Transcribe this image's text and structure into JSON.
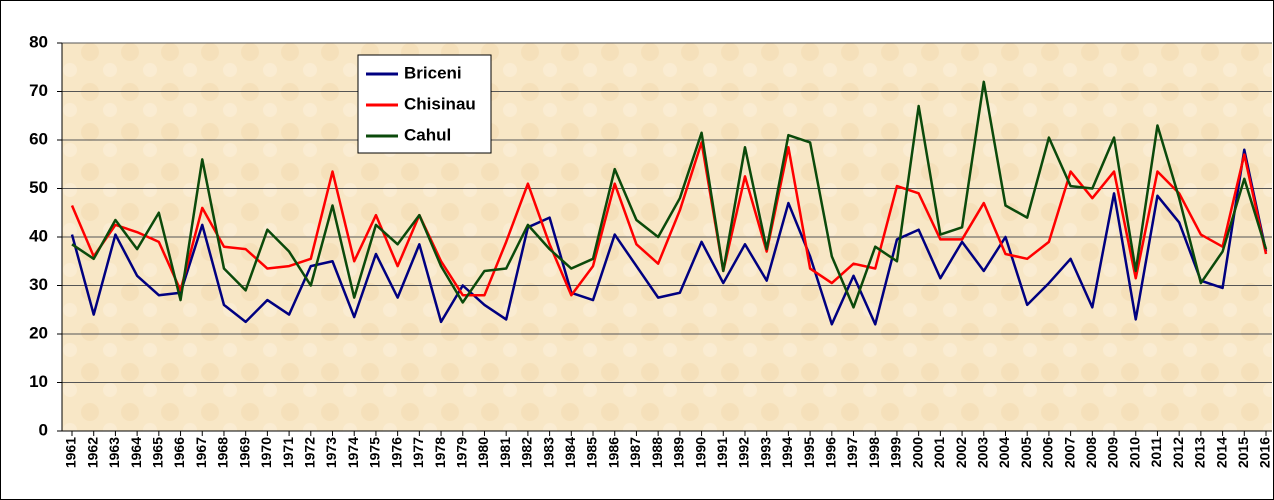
{
  "chart_data": {
    "type": "line",
    "categories": [
      "1961",
      "1962",
      "1963",
      "1964",
      "1965",
      "1966",
      "1967",
      "1968",
      "1969",
      "1970",
      "1971",
      "1972",
      "1973",
      "1974",
      "1975",
      "1976",
      "1977",
      "1978",
      "1979",
      "1980",
      "1981",
      "1982",
      "1983",
      "1984",
      "1985",
      "1986",
      "1987",
      "1988",
      "1989",
      "1990",
      "1991",
      "1992",
      "1993",
      "1994",
      "1995",
      "1996",
      "1997",
      "1998",
      "1999",
      "2000",
      "2001",
      "2002",
      "2003",
      "2004",
      "2005",
      "2006",
      "2007",
      "2008",
      "2009",
      "2010",
      "2011",
      "2012",
      "2013",
      "2014",
      "2015",
      "2016"
    ],
    "series": [
      {
        "name": "Briceni",
        "color": "#000080",
        "values": [
          40.5,
          24,
          40.5,
          32,
          28,
          28.5,
          42.5,
          26,
          22.5,
          27,
          24,
          34,
          35,
          23.5,
          36.5,
          27.5,
          38.5,
          22.5,
          30,
          26,
          23,
          42,
          44,
          28.5,
          27,
          40.5,
          34,
          27.5,
          28.5,
          39,
          30.5,
          38.5,
          31,
          47,
          36,
          22,
          32,
          22,
          39.5,
          41.5,
          31.5,
          39,
          33,
          40,
          26,
          30.5,
          35.5,
          25.5,
          49,
          23,
          48.5,
          43,
          31,
          29.5,
          58,
          37
        ]
      },
      {
        "name": "Chisinau",
        "color": "#ff0000",
        "values": [
          46.5,
          36,
          42.5,
          41,
          39,
          29,
          46,
          38,
          37.5,
          33.5,
          34,
          35.5,
          53.5,
          35,
          44.5,
          34,
          44.5,
          35,
          28,
          28,
          39,
          51,
          38.5,
          28,
          34,
          51,
          38.5,
          34.5,
          45.5,
          59.5,
          33,
          52.5,
          37,
          58.5,
          33.5,
          30.5,
          34.5,
          33.5,
          50.5,
          49,
          39.5,
          39.5,
          47,
          36.5,
          35.5,
          39,
          53.5,
          48,
          53.5,
          31.5,
          53.5,
          49,
          40.5,
          38,
          57,
          36.5
        ]
      },
      {
        "name": "Cahul",
        "color": "#0b4a0b",
        "values": [
          38.5,
          35.5,
          43.5,
          37.5,
          45,
          27,
          56,
          33.5,
          29,
          41.5,
          37,
          30,
          46.5,
          27.5,
          42.5,
          38.5,
          44.5,
          34,
          26.5,
          33,
          33.5,
          42.5,
          37.5,
          33.5,
          35.5,
          54,
          43.5,
          40,
          48,
          61.5,
          33,
          58.5,
          37.5,
          61,
          59.5,
          36,
          25.5,
          38,
          35,
          67,
          40.5,
          42,
          72,
          46.5,
          44,
          60.5,
          50.5,
          50,
          60.5,
          33,
          63,
          48,
          30.5,
          37,
          52,
          37.5
        ]
      }
    ],
    "ylim": [
      0,
      80
    ],
    "yticks": [
      0,
      10,
      20,
      30,
      40,
      50,
      60,
      70,
      80
    ],
    "grid": true
  }
}
